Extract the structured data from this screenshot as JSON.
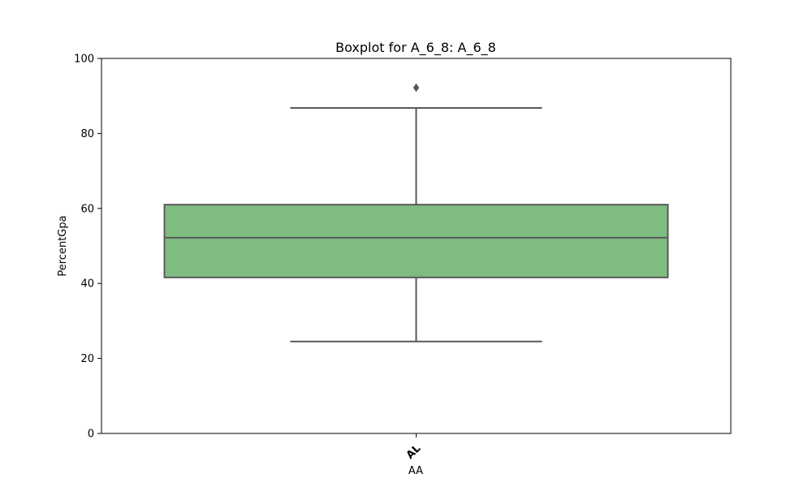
{
  "chart_data": {
    "type": "box",
    "title": "Boxplot for A_6_8: A_6_8",
    "xlabel": "AA",
    "ylabel": "PercentGpa",
    "ylim": [
      0,
      100
    ],
    "yticks": [
      0,
      20,
      40,
      60,
      80,
      100
    ],
    "grid": false,
    "categories": [
      "AL"
    ],
    "boxes": [
      {
        "category": "AL",
        "whisker_low": 24.5,
        "q1": 41.6,
        "median": 52.2,
        "q3": 61.0,
        "whisker_high": 86.8,
        "outliers": [
          92.2
        ]
      }
    ],
    "colors": {
      "box_fill": "#7fbc80",
      "line": "#595959",
      "axis": "#000000"
    }
  }
}
